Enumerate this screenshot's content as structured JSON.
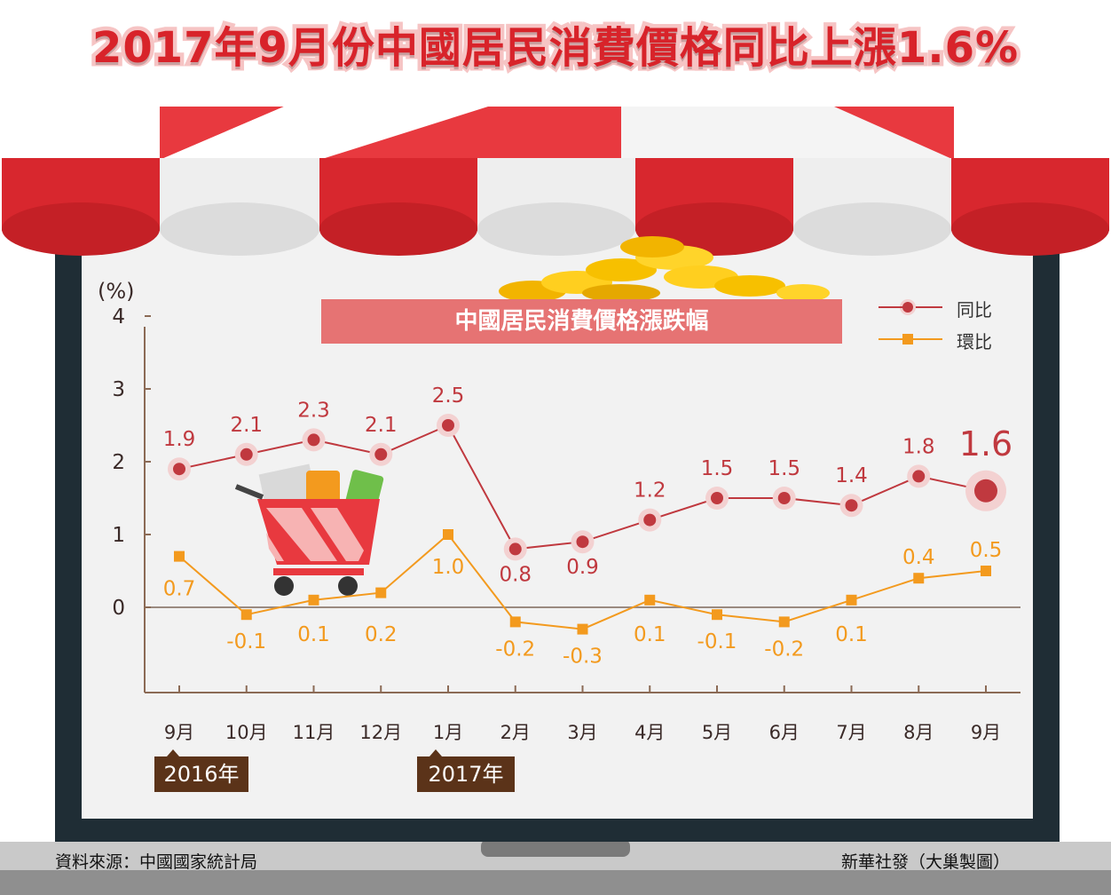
{
  "header": {
    "title": "2017年9月份中國居民消費價格同比上漲1.6%"
  },
  "chart_data": {
    "type": "line",
    "title": "中國居民消費價格漲跌幅",
    "ylabel": "(%)",
    "ylim": [
      -1,
      4
    ],
    "y_ticks": [
      "0",
      "1",
      "2",
      "3",
      "4"
    ],
    "categories": [
      "9月",
      "10月",
      "11月",
      "12月",
      "1月",
      "2月",
      "3月",
      "4月",
      "5月",
      "6月",
      "7月",
      "8月",
      "9月"
    ],
    "year_markers": [
      {
        "label": "2016年",
        "category_index": 0
      },
      {
        "label": "2017年",
        "category_index": 4
      }
    ],
    "series": [
      {
        "name": "同比",
        "color": "#c0393f",
        "values": [
          1.9,
          2.1,
          2.3,
          2.1,
          2.5,
          0.8,
          0.9,
          1.2,
          1.5,
          1.5,
          1.4,
          1.8,
          1.6
        ],
        "labels": [
          "1.9",
          "2.1",
          "2.3",
          "2.1",
          "2.5",
          "0.8",
          "0.9",
          "1.2",
          "1.5",
          "1.5",
          "1.4",
          "1.8",
          "1.6"
        ]
      },
      {
        "name": "環比",
        "color": "#f39a1e",
        "values": [
          0.7,
          -0.1,
          0.1,
          0.2,
          1.0,
          -0.2,
          -0.3,
          0.1,
          -0.1,
          -0.2,
          0.1,
          0.4,
          0.5
        ],
        "labels": [
          "0.7",
          "-0.1",
          "0.1",
          "0.2",
          "1.0",
          "-0.2",
          "-0.3",
          "0.1",
          "-0.1",
          "-0.2",
          "0.1",
          "0.4",
          "0.5"
        ]
      }
    ],
    "grid": false,
    "legend_position": "top-right"
  },
  "footer": {
    "source": "資料來源：中國國家統計局",
    "credit": "新華社發（大巢製圖）"
  },
  "colors": {
    "awning_red": "#d8272e",
    "awning_white": "#f5f5f5",
    "frame_dark": "#1f2d35",
    "panel_bg": "#f2f2f2"
  }
}
